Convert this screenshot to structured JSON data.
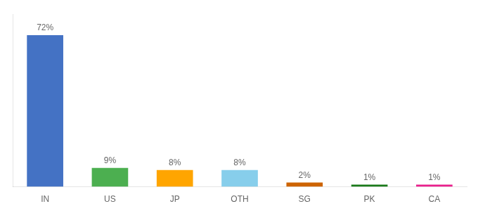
{
  "chart_data": {
    "type": "bar",
    "categories": [
      "IN",
      "US",
      "JP",
      "OTH",
      "SG",
      "PK",
      "CA"
    ],
    "values": [
      72,
      9,
      8,
      8,
      2,
      1,
      1
    ],
    "value_labels": [
      "72%",
      "9%",
      "8%",
      "8%",
      "2%",
      "1%",
      "1%"
    ],
    "colors": [
      "#4472C4",
      "#4CAF50",
      "#FFA500",
      "#87CEEB",
      "#CD6400",
      "#1A7A1A",
      "#E91E8C"
    ],
    "ylim": [
      0,
      82
    ],
    "data_labels": true,
    "tick_labels": "x",
    "grid": false
  }
}
